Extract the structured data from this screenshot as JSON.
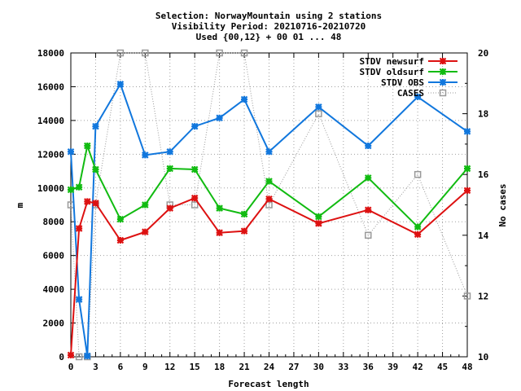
{
  "chart_data": {
    "type": "line",
    "title_lines": [
      "Selection: NorwayMountain using     2 stations",
      "Visibility   Period: 20210716-20210720",
      "Used {00,12} + 00 01 ... 48"
    ],
    "xlabel": "Forecast length",
    "ylabel": "m",
    "y2label": "No cases",
    "xlim": [
      0,
      48
    ],
    "ylim": [
      0,
      18000
    ],
    "y2lim": [
      10,
      20
    ],
    "xticks": [
      0,
      3,
      6,
      9,
      12,
      15,
      18,
      21,
      24,
      27,
      30,
      33,
      36,
      39,
      42,
      45,
      48
    ],
    "yticks": [
      0,
      2000,
      4000,
      6000,
      8000,
      10000,
      12000,
      14000,
      16000,
      18000
    ],
    "y2ticks": [
      10,
      12,
      14,
      16,
      18,
      20
    ],
    "grid": true,
    "legend_position": "top-right",
    "series": [
      {
        "name": "STDV newsurf",
        "color": "#dd1111",
        "axis": "y",
        "x": [
          0,
          1,
          2,
          3,
          6,
          9,
          12,
          15,
          18,
          21,
          24,
          30,
          36,
          42,
          48
        ],
        "values": [
          100,
          7600,
          9200,
          9100,
          6900,
          7400,
          8800,
          9400,
          7350,
          7450,
          9350,
          7900,
          8700,
          7250,
          9850
        ]
      },
      {
        "name": "STDV oldsurf",
        "color": "#11bb11",
        "axis": "y",
        "x": [
          0,
          1,
          2,
          3,
          6,
          9,
          12,
          15,
          18,
          21,
          24,
          30,
          36,
          42,
          48
        ],
        "values": [
          9900,
          10050,
          12500,
          11100,
          8150,
          9000,
          11150,
          11100,
          8800,
          8450,
          10400,
          8300,
          10600,
          7700,
          11150
        ]
      },
      {
        "name": "STDV OBS",
        "color": "#1177dd",
        "axis": "y",
        "x": [
          0,
          1,
          2,
          3,
          6,
          9,
          12,
          15,
          18,
          21,
          24,
          30,
          36,
          42,
          48
        ],
        "values": [
          12150,
          3400,
          50,
          13650,
          16150,
          11950,
          12150,
          13650,
          14150,
          15250,
          12150,
          14800,
          12500,
          15400,
          13350
        ]
      },
      {
        "name": "CASES",
        "color": "#999999",
        "axis": "y2",
        "x": [
          0,
          1,
          2,
          3,
          6,
          9,
          12,
          15,
          18,
          21,
          24,
          30,
          36,
          42,
          48
        ],
        "values": [
          15,
          10,
          10,
          15,
          20,
          20,
          15,
          15,
          20,
          20,
          15,
          18,
          14,
          16,
          12
        ]
      }
    ]
  }
}
